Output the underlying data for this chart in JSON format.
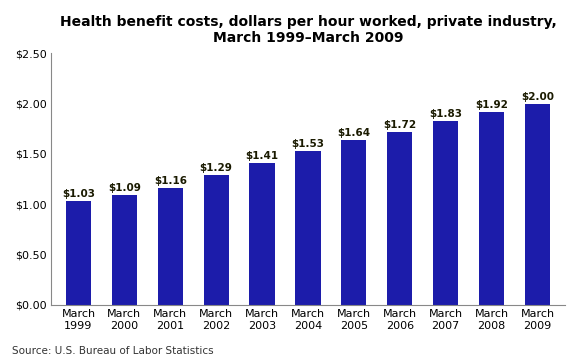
{
  "title_line1": "Health benefit costs, dollars per hour worked, private industry,",
  "title_line2": "March 1999–March 2009",
  "categories": [
    "March\n1999",
    "March\n2000",
    "March\n2001",
    "March\n2002",
    "March\n2003",
    "March\n2004",
    "March\n2005",
    "March\n2006",
    "March\n2007",
    "March\n2008",
    "March\n2009"
  ],
  "values": [
    1.03,
    1.09,
    1.16,
    1.29,
    1.41,
    1.53,
    1.64,
    1.72,
    1.83,
    1.92,
    2.0
  ],
  "labels": [
    "$1.03",
    "$1.09",
    "$1.16",
    "$1.29",
    "$1.41",
    "$1.53",
    "$1.64",
    "$1.72",
    "$1.83",
    "$1.92",
    "$2.00"
  ],
  "bar_color": "#1c1caa",
  "label_color": "#1a1a00",
  "ylim": [
    0,
    2.5
  ],
  "yticks": [
    0.0,
    0.5,
    1.0,
    1.5,
    2.0,
    2.5
  ],
  "ytick_labels": [
    "$0.00",
    "$0.50",
    "$1.00",
    "$1.50",
    "$2.00",
    "$2.50"
  ],
  "source_text": "Source: U.S. Bureau of Labor Statistics",
  "title_fontsize": 10,
  "label_fontsize": 7.5,
  "tick_fontsize": 8,
  "source_fontsize": 7.5,
  "background_color": "#ffffff"
}
